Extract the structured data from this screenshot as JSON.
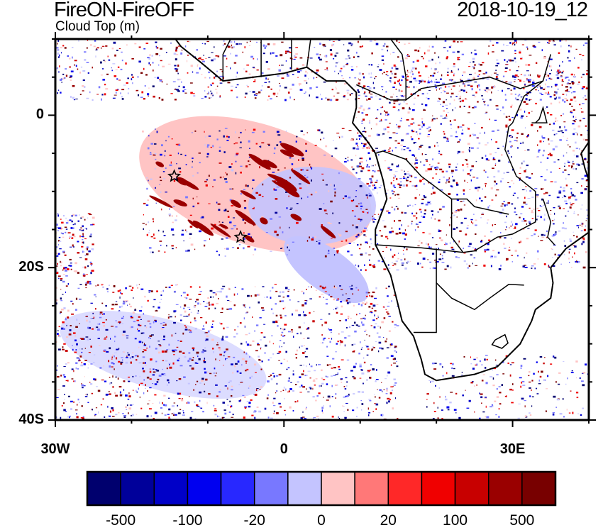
{
  "title": "FireON-FireOFF",
  "subtitle": "Cloud Top (m)",
  "date": "2018-10-19_12",
  "chart_data": {
    "type": "heatmap",
    "title": "FireON-FireOFF",
    "variable": "Cloud Top (m)",
    "time": "2018-10-19_12",
    "lon_range": [
      -30,
      40
    ],
    "lat_range": [
      -40,
      10
    ],
    "x_ticks": [
      {
        "value": -30,
        "label": "30W"
      },
      {
        "value": 0,
        "label": "0"
      },
      {
        "value": 30,
        "label": "30E"
      }
    ],
    "y_ticks": [
      {
        "value": 0,
        "label": "0"
      },
      {
        "value": -20,
        "label": "20S"
      },
      {
        "value": -40,
        "label": "40S"
      }
    ],
    "markers": [
      {
        "symbol": "star",
        "lon": -14.4,
        "lat": -8
      },
      {
        "symbol": "star",
        "lon": -5.7,
        "lat": -16
      }
    ],
    "colorbar": {
      "levels": [
        -500,
        -200,
        -100,
        -50,
        -20,
        -10,
        0,
        10,
        20,
        50,
        100,
        200,
        500
      ],
      "labels": [
        "-500",
        "-100",
        "-20",
        "0",
        "20",
        "100",
        "500"
      ],
      "colors": [
        "#00006e",
        "#00009a",
        "#0000c8",
        "#0000f0",
        "#2828ff",
        "#7878ff",
        "#c4c4ff",
        "#ffc4c4",
        "#ff7878",
        "#ff2828",
        "#f00000",
        "#c80000",
        "#9a0000",
        "#780000"
      ]
    }
  }
}
